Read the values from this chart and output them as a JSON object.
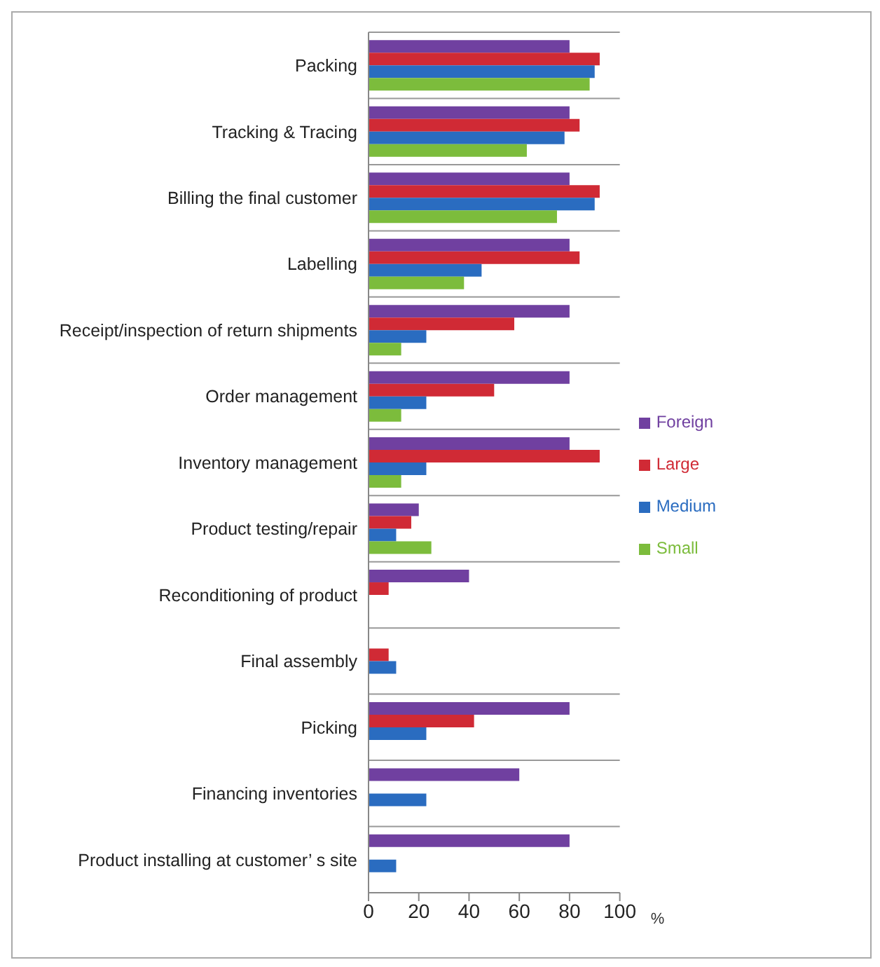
{
  "chart_data": {
    "type": "bar",
    "orientation": "horizontal",
    "xlabel": "%",
    "categories": [
      "Packing",
      "Tracking & Tracing",
      "Billing the final customer",
      "Labelling",
      "Receipt/inspection of return shipments",
      "Order management",
      "Inventory management",
      "Product testing/repair",
      "Reconditioning of product",
      "Final assembly",
      "Picking",
      "Financing inventories",
      "Product installing at customer’ s site"
    ],
    "series": [
      {
        "name": "Foreign",
        "color": "#7040a0",
        "values": [
          80,
          80,
          80,
          80,
          80,
          80,
          80,
          20,
          40,
          0,
          80,
          60,
          80
        ]
      },
      {
        "name": "Large",
        "color": "#d02a35",
        "values": [
          92,
          84,
          92,
          84,
          58,
          50,
          92,
          17,
          8,
          8,
          42,
          0,
          0
        ]
      },
      {
        "name": "Medium",
        "color": "#2a6cc0",
        "values": [
          90,
          78,
          90,
          45,
          23,
          23,
          23,
          11,
          0,
          11,
          23,
          23,
          11
        ]
      },
      {
        "name": "Small",
        "color": "#7cbc3c",
        "values": [
          88,
          63,
          75,
          38,
          13,
          13,
          13,
          25,
          0,
          0,
          0,
          0,
          0
        ]
      }
    ],
    "xlim": [
      0,
      100
    ],
    "xticks": [
      0,
      20,
      40,
      60,
      80,
      100
    ],
    "grid": "y",
    "legend": "right"
  }
}
